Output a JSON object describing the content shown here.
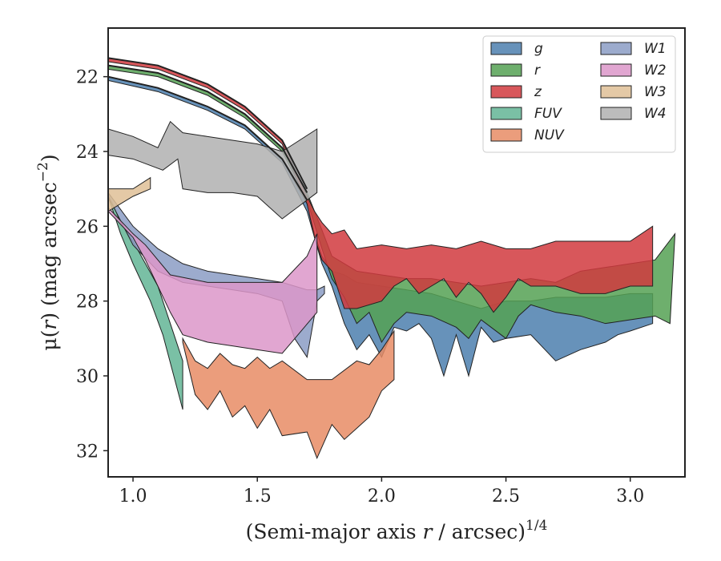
{
  "chart_data": {
    "type": "area",
    "xlabel_main": "(Semi-major axis ",
    "xlabel_var": "r",
    "xlabel_tail": " / arcsec)",
    "xlabel_exp": "1/4",
    "ylabel_main": "μ(",
    "ylabel_var": "r",
    "ylabel_tail": ") (mag arcsec",
    "ylabel_exp": "−2",
    "ylabel_close": ")",
    "xlim": [
      0.9,
      3.22
    ],
    "ylim": [
      32.7,
      20.7
    ],
    "y_inverted": true,
    "xticks": [
      1.0,
      1.5,
      2.0,
      2.5,
      3.0
    ],
    "xtick_labels": [
      "1.0",
      "1.5",
      "2.0",
      "2.5",
      "3.0"
    ],
    "yticks": [
      22,
      24,
      26,
      28,
      30,
      32
    ],
    "ytick_labels": [
      "22",
      "24",
      "26",
      "28",
      "30",
      "32"
    ],
    "grid": false,
    "legend_position": "top-right",
    "legend_columns": 2,
    "series": [
      {
        "name": "g",
        "color": "#4c7fae",
        "upper": [
          [
            0.9,
            22.0
          ],
          [
            1.1,
            22.3
          ],
          [
            1.3,
            22.8
          ],
          [
            1.45,
            23.3
          ],
          [
            1.6,
            24.2
          ],
          [
            1.7,
            25.4
          ],
          [
            1.73,
            26.2
          ],
          [
            1.76,
            26.8
          ],
          [
            1.8,
            27.2
          ],
          [
            1.85,
            27.3
          ],
          [
            1.9,
            27.5
          ],
          [
            2.0,
            27.6
          ],
          [
            2.1,
            27.7
          ],
          [
            2.2,
            27.8
          ],
          [
            2.3,
            28.0
          ],
          [
            2.4,
            28.2
          ],
          [
            2.5,
            28.0
          ],
          [
            2.6,
            28.0
          ],
          [
            2.7,
            27.9
          ],
          [
            2.8,
            27.9
          ],
          [
            2.9,
            27.9
          ],
          [
            3.0,
            27.8
          ],
          [
            3.09,
            27.8
          ]
        ],
        "lower": [
          [
            0.9,
            22.1
          ],
          [
            1.1,
            22.4
          ],
          [
            1.3,
            22.9
          ],
          [
            1.45,
            23.4
          ],
          [
            1.6,
            24.3
          ],
          [
            1.7,
            25.6
          ],
          [
            1.76,
            27.0
          ],
          [
            1.8,
            27.6
          ],
          [
            1.85,
            28.6
          ],
          [
            1.9,
            29.3
          ],
          [
            1.95,
            28.9
          ],
          [
            2.0,
            29.5
          ],
          [
            2.05,
            28.7
          ],
          [
            2.1,
            28.8
          ],
          [
            2.15,
            28.6
          ],
          [
            2.2,
            29.0
          ],
          [
            2.25,
            30.0
          ],
          [
            2.3,
            28.9
          ],
          [
            2.35,
            30.0
          ],
          [
            2.4,
            28.7
          ],
          [
            2.45,
            29.1
          ],
          [
            2.5,
            29.0
          ],
          [
            2.6,
            28.9
          ],
          [
            2.7,
            29.6
          ],
          [
            2.8,
            29.3
          ],
          [
            2.9,
            29.1
          ],
          [
            2.95,
            28.9
          ],
          [
            3.0,
            28.8
          ],
          [
            3.09,
            28.6
          ]
        ]
      },
      {
        "name": "r",
        "color": "#55a154",
        "upper": [
          [
            0.9,
            21.7
          ],
          [
            1.1,
            21.9
          ],
          [
            1.3,
            22.4
          ],
          [
            1.45,
            23.0
          ],
          [
            1.6,
            23.9
          ],
          [
            1.7,
            25.1
          ],
          [
            1.76,
            26.1
          ],
          [
            1.8,
            26.8
          ],
          [
            1.9,
            27.2
          ],
          [
            2.0,
            27.3
          ],
          [
            2.1,
            27.4
          ],
          [
            2.2,
            27.4
          ],
          [
            2.3,
            27.5
          ],
          [
            2.4,
            27.6
          ],
          [
            2.5,
            27.5
          ],
          [
            2.6,
            27.4
          ],
          [
            2.7,
            27.5
          ],
          [
            2.8,
            27.2
          ],
          [
            2.9,
            27.1
          ],
          [
            3.0,
            27.0
          ],
          [
            3.1,
            26.9
          ],
          [
            3.18,
            26.2
          ]
        ],
        "lower": [
          [
            0.9,
            21.8
          ],
          [
            1.1,
            22.0
          ],
          [
            1.3,
            22.5
          ],
          [
            1.45,
            23.1
          ],
          [
            1.6,
            24.0
          ],
          [
            1.7,
            25.3
          ],
          [
            1.76,
            26.6
          ],
          [
            1.8,
            27.4
          ],
          [
            1.85,
            27.9
          ],
          [
            1.9,
            28.6
          ],
          [
            1.95,
            28.3
          ],
          [
            2.0,
            29.1
          ],
          [
            2.05,
            28.6
          ],
          [
            2.1,
            28.3
          ],
          [
            2.2,
            28.4
          ],
          [
            2.3,
            28.7
          ],
          [
            2.35,
            29.0
          ],
          [
            2.4,
            28.5
          ],
          [
            2.5,
            29.0
          ],
          [
            2.55,
            28.4
          ],
          [
            2.6,
            28.1
          ],
          [
            2.7,
            28.3
          ],
          [
            2.8,
            28.4
          ],
          [
            2.9,
            28.6
          ],
          [
            3.0,
            28.5
          ],
          [
            3.1,
            28.4
          ],
          [
            3.16,
            28.6
          ]
        ]
      },
      {
        "name": "z",
        "color": "#d13a3e",
        "upper": [
          [
            0.9,
            21.5
          ],
          [
            1.1,
            21.7
          ],
          [
            1.3,
            22.2
          ],
          [
            1.45,
            22.8
          ],
          [
            1.6,
            23.7
          ],
          [
            1.7,
            25.2
          ],
          [
            1.73,
            25.6
          ],
          [
            1.76,
            25.9
          ],
          [
            1.8,
            26.2
          ],
          [
            1.85,
            26.1
          ],
          [
            1.9,
            26.6
          ],
          [
            2.0,
            26.5
          ],
          [
            2.1,
            26.6
          ],
          [
            2.2,
            26.5
          ],
          [
            2.3,
            26.6
          ],
          [
            2.4,
            26.4
          ],
          [
            2.5,
            26.6
          ],
          [
            2.6,
            26.6
          ],
          [
            2.7,
            26.4
          ],
          [
            2.8,
            26.4
          ],
          [
            2.9,
            26.4
          ],
          [
            3.0,
            26.4
          ],
          [
            3.09,
            26.0
          ]
        ],
        "lower": [
          [
            0.9,
            21.6
          ],
          [
            1.1,
            21.8
          ],
          [
            1.3,
            22.3
          ],
          [
            1.45,
            22.9
          ],
          [
            1.6,
            23.8
          ],
          [
            1.7,
            25.4
          ],
          [
            1.73,
            26.3
          ],
          [
            1.76,
            26.9
          ],
          [
            1.8,
            27.2
          ],
          [
            1.85,
            28.2
          ],
          [
            1.9,
            28.2
          ],
          [
            2.0,
            28.0
          ],
          [
            2.05,
            27.6
          ],
          [
            2.1,
            27.4
          ],
          [
            2.15,
            27.8
          ],
          [
            2.2,
            27.6
          ],
          [
            2.25,
            27.4
          ],
          [
            2.3,
            27.9
          ],
          [
            2.35,
            27.5
          ],
          [
            2.4,
            27.8
          ],
          [
            2.45,
            28.3
          ],
          [
            2.5,
            27.9
          ],
          [
            2.55,
            27.4
          ],
          [
            2.6,
            27.6
          ],
          [
            2.7,
            27.6
          ],
          [
            2.8,
            27.8
          ],
          [
            2.9,
            27.8
          ],
          [
            3.0,
            27.6
          ],
          [
            3.09,
            27.6
          ]
        ]
      },
      {
        "name": "FUV",
        "color": "#63b595",
        "upper": [
          [
            0.9,
            25.1
          ],
          [
            0.95,
            25.9
          ],
          [
            1.0,
            26.4
          ],
          [
            1.1,
            27.6
          ],
          [
            1.15,
            28.6
          ],
          [
            1.2,
            29.6
          ]
        ],
        "lower": [
          [
            0.9,
            25.2
          ],
          [
            0.95,
            26.2
          ],
          [
            1.0,
            27.0
          ],
          [
            1.07,
            28.0
          ],
          [
            1.12,
            28.9
          ],
          [
            1.2,
            30.9
          ]
        ]
      },
      {
        "name": "NUV",
        "color": "#e88c65",
        "upper": [
          [
            1.2,
            29.0
          ],
          [
            1.25,
            29.6
          ],
          [
            1.3,
            29.8
          ],
          [
            1.35,
            29.4
          ],
          [
            1.4,
            29.7
          ],
          [
            1.45,
            29.8
          ],
          [
            1.5,
            29.5
          ],
          [
            1.55,
            29.8
          ],
          [
            1.6,
            29.6
          ],
          [
            1.7,
            30.1
          ],
          [
            1.8,
            30.1
          ],
          [
            1.9,
            29.6
          ],
          [
            1.95,
            29.7
          ],
          [
            2.0,
            29.3
          ],
          [
            2.05,
            28.8
          ]
        ],
        "lower": [
          [
            1.2,
            29.1
          ],
          [
            1.25,
            30.5
          ],
          [
            1.3,
            30.9
          ],
          [
            1.35,
            30.4
          ],
          [
            1.4,
            31.1
          ],
          [
            1.45,
            30.8
          ],
          [
            1.5,
            31.4
          ],
          [
            1.55,
            30.9
          ],
          [
            1.6,
            31.6
          ],
          [
            1.7,
            31.5
          ],
          [
            1.74,
            32.2
          ],
          [
            1.8,
            31.3
          ],
          [
            1.85,
            31.7
          ],
          [
            1.9,
            31.4
          ],
          [
            1.95,
            31.1
          ],
          [
            2.0,
            30.4
          ],
          [
            2.05,
            30.1
          ]
        ]
      },
      {
        "name": "W1",
        "color": "#8b9cc4",
        "upper": [
          [
            0.9,
            25.1
          ],
          [
            1.0,
            26.0
          ],
          [
            1.1,
            26.6
          ],
          [
            1.2,
            27.0
          ],
          [
            1.3,
            27.2
          ],
          [
            1.4,
            27.3
          ],
          [
            1.5,
            27.4
          ],
          [
            1.6,
            27.5
          ],
          [
            1.65,
            27.6
          ],
          [
            1.7,
            27.7
          ],
          [
            1.74,
            27.7
          ],
          [
            1.77,
            27.6
          ]
        ],
        "lower": [
          [
            0.9,
            25.2
          ],
          [
            1.0,
            26.5
          ],
          [
            1.1,
            27.2
          ],
          [
            1.2,
            27.5
          ],
          [
            1.3,
            27.6
          ],
          [
            1.4,
            27.7
          ],
          [
            1.5,
            27.8
          ],
          [
            1.6,
            28.0
          ],
          [
            1.65,
            29.0
          ],
          [
            1.7,
            29.5
          ],
          [
            1.74,
            28.0
          ],
          [
            1.77,
            27.8
          ]
        ]
      },
      {
        "name": "W2",
        "color": "#dc97c9",
        "upper": [
          [
            0.9,
            25.5
          ],
          [
            1.0,
            26.2
          ],
          [
            1.05,
            26.5
          ],
          [
            1.15,
            27.3
          ],
          [
            1.3,
            27.5
          ],
          [
            1.4,
            27.5
          ],
          [
            1.5,
            27.5
          ],
          [
            1.6,
            27.5
          ],
          [
            1.7,
            26.8
          ],
          [
            1.74,
            26.2
          ]
        ],
        "lower": [
          [
            0.9,
            25.6
          ],
          [
            1.0,
            26.3
          ],
          [
            1.05,
            26.9
          ],
          [
            1.15,
            28.3
          ],
          [
            1.2,
            28.9
          ],
          [
            1.3,
            29.1
          ],
          [
            1.4,
            29.2
          ],
          [
            1.5,
            29.3
          ],
          [
            1.6,
            29.4
          ],
          [
            1.74,
            28.3
          ]
        ]
      },
      {
        "name": "W3",
        "color": "#dfbf96",
        "upper": [
          [
            0.9,
            25.0
          ],
          [
            1.0,
            25.0
          ],
          [
            1.07,
            24.7
          ]
        ],
        "lower": [
          [
            0.9,
            25.6
          ],
          [
            0.95,
            25.4
          ],
          [
            1.0,
            25.2
          ],
          [
            1.07,
            25.0
          ]
        ]
      },
      {
        "name": "W4",
        "color": "#b0b0b0",
        "upper": [
          [
            0.9,
            23.4
          ],
          [
            1.0,
            23.6
          ],
          [
            1.1,
            23.9
          ],
          [
            1.15,
            23.2
          ],
          [
            1.2,
            23.5
          ],
          [
            1.3,
            23.6
          ],
          [
            1.4,
            23.7
          ],
          [
            1.5,
            23.8
          ],
          [
            1.6,
            24.0
          ],
          [
            1.74,
            23.4
          ]
        ],
        "lower": [
          [
            0.9,
            24.1
          ],
          [
            1.0,
            24.2
          ],
          [
            1.12,
            24.5
          ],
          [
            1.18,
            24.2
          ],
          [
            1.2,
            25.0
          ],
          [
            1.3,
            25.1
          ],
          [
            1.4,
            25.1
          ],
          [
            1.5,
            25.2
          ],
          [
            1.6,
            25.8
          ],
          [
            1.74,
            25.1
          ]
        ]
      }
    ],
    "overlay_lines": [
      {
        "color": "#222222",
        "points": [
          [
            0.9,
            21.5
          ],
          [
            1.1,
            21.7
          ],
          [
            1.3,
            22.2
          ],
          [
            1.45,
            22.8
          ],
          [
            1.6,
            23.7
          ],
          [
            1.7,
            25.0
          ]
        ]
      },
      {
        "color": "#222222",
        "points": [
          [
            0.9,
            21.7
          ],
          [
            1.1,
            21.9
          ],
          [
            1.3,
            22.4
          ],
          [
            1.45,
            23.0
          ],
          [
            1.6,
            23.9
          ],
          [
            1.7,
            25.1
          ]
        ]
      },
      {
        "color": "#222222",
        "points": [
          [
            0.9,
            22.0
          ],
          [
            1.1,
            22.3
          ],
          [
            1.3,
            22.8
          ],
          [
            1.45,
            23.3
          ],
          [
            1.6,
            24.2
          ],
          [
            1.7,
            25.3
          ]
        ]
      }
    ]
  }
}
